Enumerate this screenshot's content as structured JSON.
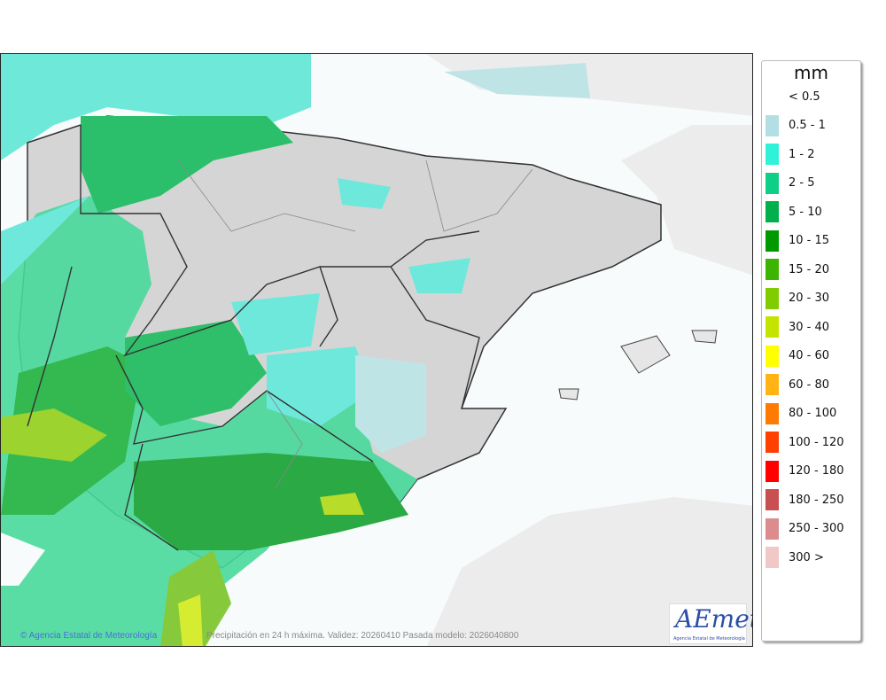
{
  "map": {
    "credit": "© Agencia Estatal de Meteorología",
    "caption": "Precipitación en 24 h máxima. Validez: 20260410 Pasada modelo: 2026040800",
    "logo_text": "AEmet",
    "logo_subtitle": "Agencia Estatal de Meteorología"
  },
  "legend": {
    "unit": "mm",
    "items": [
      {
        "label": "< 0.5",
        "color": ""
      },
      {
        "label": "0.5 - 1",
        "color": "#b2dfe3"
      },
      {
        "label": "1 - 2",
        "color": "#2ff2d8"
      },
      {
        "label": "2 - 5",
        "color": "#0fcf86"
      },
      {
        "label": "5 - 10",
        "color": "#00b04a"
      },
      {
        "label": "10 - 15",
        "color": "#009a00"
      },
      {
        "label": "15 - 20",
        "color": "#3cb400"
      },
      {
        "label": "20 - 30",
        "color": "#80cc00"
      },
      {
        "label": "30 - 40",
        "color": "#c4e400"
      },
      {
        "label": "40 - 60",
        "color": "#ffff00"
      },
      {
        "label": "60 - 80",
        "color": "#ffb414"
      },
      {
        "label": "80 - 100",
        "color": "#ff7a00"
      },
      {
        "label": "100 - 120",
        "color": "#ff4000"
      },
      {
        "label": "120 - 180",
        "color": "#ff0000"
      },
      {
        "label": "180 - 250",
        "color": "#c85050"
      },
      {
        "label": "250 - 300",
        "color": "#dc8c8c"
      },
      {
        "label": "300 >",
        "color": "#f0c8c8"
      }
    ]
  }
}
